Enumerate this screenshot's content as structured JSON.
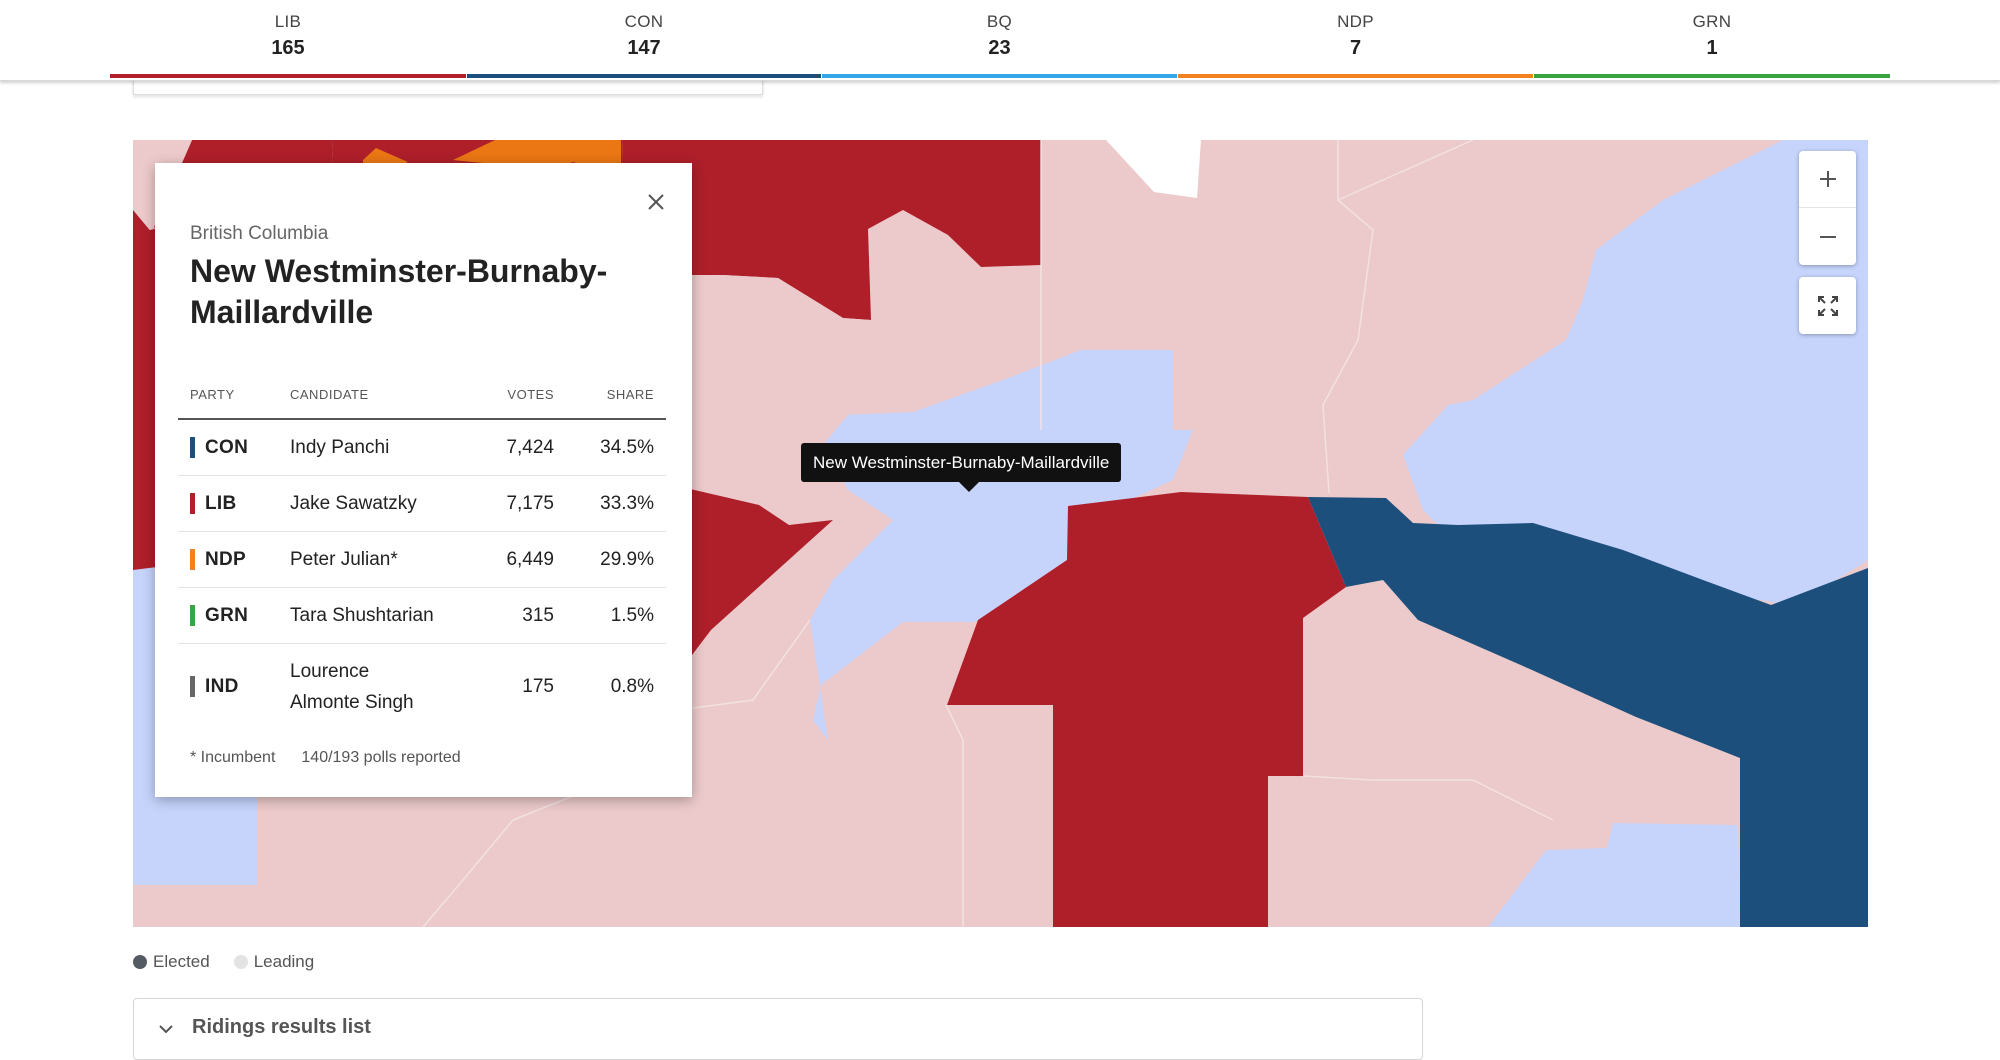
{
  "tally": [
    {
      "party": "LIB",
      "seats": "165",
      "color": "#b0202c"
    },
    {
      "party": "CON",
      "seats": "147",
      "color": "#1c4f7e"
    },
    {
      "party": "BQ",
      "seats": "23",
      "color": "#33a6e6"
    },
    {
      "party": "NDP",
      "seats": "7",
      "color": "#f28120"
    },
    {
      "party": "GRN",
      "seats": "1",
      "color": "#3aa443"
    }
  ],
  "map": {
    "colors": {
      "lib_elected": "#ae1f2a",
      "lib_leading": "#eccacb",
      "con_elected": "#1d4f7d",
      "con_leading": "#c6d4fc",
      "ndp": "#ea7614",
      "none": "#ffffff"
    },
    "controls": {
      "zoom_in_icon": "plus-icon",
      "zoom_out_icon": "minus-icon",
      "fullscreen_icon": "fullscreen-icon"
    },
    "tooltip": "New Westminster-Burnaby-Maillardville"
  },
  "popup": {
    "province": "British Columbia",
    "riding": "New Westminster-Burnaby-Maillardville",
    "headers": {
      "party": "PARTY",
      "candidate": "CANDIDATE",
      "votes": "VOTES",
      "share": "SHARE"
    },
    "rows": [
      {
        "party": "CON",
        "candidate": "Indy Panchi",
        "votes": "7,424",
        "share": "34.5%",
        "color": "#1c4f7e"
      },
      {
        "party": "LIB",
        "candidate": "Jake Sawatzky",
        "votes": "7,175",
        "share": "33.3%",
        "color": "#b0202c"
      },
      {
        "party": "NDP",
        "candidate": "Peter Julian*",
        "votes": "6,449",
        "share": "29.9%",
        "color": "#f28120"
      },
      {
        "party": "GRN",
        "candidate": "Tara Shushtarian",
        "votes": "315",
        "share": "1.5%",
        "color": "#3aa443"
      },
      {
        "party": "IND",
        "candidate": "Lourence Almonte Singh",
        "votes": "175",
        "share": "0.8%",
        "color": "#666666"
      }
    ],
    "footnote": "* Incumbent",
    "polls": "140/193 polls reported"
  },
  "legend": [
    {
      "label": "Elected",
      "color": "#555b63"
    },
    {
      "label": "Leading",
      "color": "#e3e3e3"
    }
  ],
  "accordion": {
    "label": "Ridings results list"
  }
}
